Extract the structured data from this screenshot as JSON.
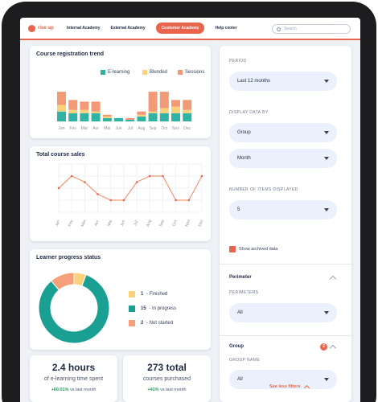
{
  "app": {
    "logo_text": "rise up"
  },
  "nav": {
    "items": [
      "Internal Academy",
      "External Academy",
      "Customer Academy",
      "Help center"
    ],
    "active_index": 2
  },
  "search": {
    "placeholder": "Search"
  },
  "colors": {
    "accent": "#e8644c",
    "teal": "#1aa093",
    "yellow": "#fbd27a",
    "salmon": "#f5a07a",
    "orange": "#e8644c"
  },
  "registration": {
    "title": "Course registration trend",
    "legend": [
      {
        "label": "E-learning",
        "color": "#2fb3a5"
      },
      {
        "label": "Blended",
        "color": "#fbd27a"
      },
      {
        "label": "Sessions",
        "color": "#f29a76"
      }
    ]
  },
  "sales": {
    "title": "Total course sales"
  },
  "progress": {
    "title": "Learner progress status",
    "items": [
      {
        "count": "1",
        "label": "Finished",
        "color": "#fbd27a"
      },
      {
        "count": "15",
        "label": "In progress",
        "color": "#1aa093"
      },
      {
        "count": "2",
        "label": "Not started",
        "color": "#f5a07a"
      }
    ]
  },
  "stats": [
    {
      "big": "2.4 hours",
      "sub": "of e-learning time spent",
      "delta": "+60.01%",
      "delta_suffix": "vs last month"
    },
    {
      "big": "273 total",
      "sub": "courses purchased",
      "delta": "+41%",
      "delta_suffix": "vs last month"
    }
  ],
  "filters": {
    "period_label": "PERIOD",
    "period_value": "Last 12 months",
    "display_label": "DISPLAY DATA BY",
    "display_value_1": "Group",
    "display_value_2": "Month",
    "items_label": "NUMBER OF ITEMS DISPLAYED",
    "items_value": "5",
    "archived_label": "Show archived data",
    "perimeter_title": "Perimeter",
    "perimeters_label": "PERIMETERS",
    "perimeters_value": "All",
    "group_title": "Group",
    "group_badge": "2",
    "group_name_label": "GROUP NAME",
    "group_name_value": "All",
    "see_less": "See less filters"
  },
  "chart_data": [
    {
      "type": "bar",
      "title": "Course registration trend",
      "categories": [
        "Jan",
        "Fev",
        "Mar",
        "Avr",
        "Mai",
        "Jun",
        "Jul",
        "Aug",
        "Sep",
        "Oct",
        "Nov",
        "Dec"
      ],
      "series": [
        {
          "name": "E-learning",
          "values": [
            6,
            5,
            5,
            5,
            2,
            2,
            1,
            3,
            5,
            5,
            5,
            5
          ]
        },
        {
          "name": "Blended",
          "values": [
            4,
            2,
            2,
            1,
            1,
            0,
            0,
            1,
            1,
            3,
            4,
            2
          ]
        },
        {
          "name": "Sessions",
          "values": [
            8,
            6,
            5,
            6,
            1,
            0,
            1,
            2,
            12,
            10,
            4,
            6
          ]
        }
      ]
    },
    {
      "type": "line",
      "title": "Total course sales",
      "points": [
        {
          "x": "Jan",
          "y": 8
        },
        {
          "x": "Fev",
          "y": 10
        },
        {
          "x": "Mar",
          "y": 9
        },
        {
          "x": "Avr",
          "y": 7
        },
        {
          "x": "Mai",
          "y": 6
        },
        {
          "x": "Jun",
          "y": 6
        },
        {
          "x": "Jul",
          "y": 9
        },
        {
          "x": "Aug",
          "y": 10
        },
        {
          "x": "Sep",
          "y": 10
        },
        {
          "x": "Oct",
          "y": 6
        },
        {
          "x": "Nov",
          "y": 6
        },
        {
          "x": "Dec",
          "y": 10
        }
      ],
      "grid": true
    },
    {
      "type": "pie",
      "title": "Learner progress status",
      "slices": [
        {
          "label": "Finished",
          "value": 1
        },
        {
          "label": "In progress",
          "value": 15
        },
        {
          "label": "Not started",
          "value": 2
        }
      ]
    }
  ]
}
